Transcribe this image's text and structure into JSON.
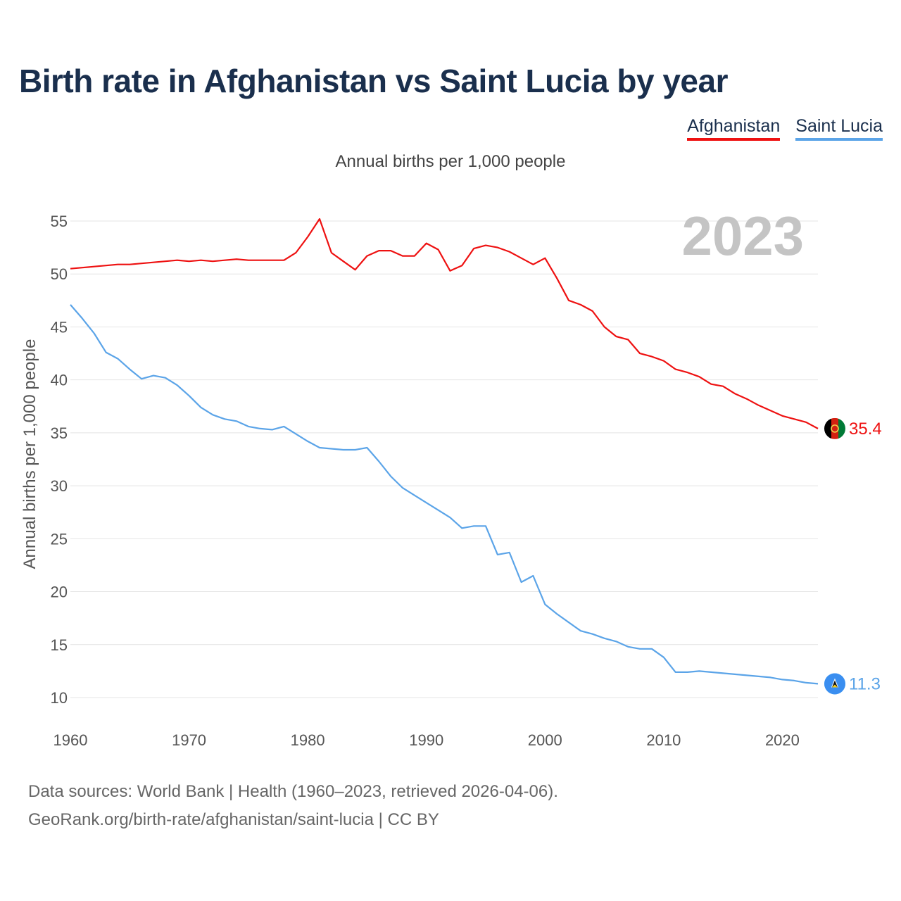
{
  "header": {
    "title": "Birth rate in Afghanistan vs Saint Lucia by year"
  },
  "legend": [
    {
      "name": "Afghanistan",
      "color": "#ee1111"
    },
    {
      "name": "Saint Lucia",
      "color": "#5ba4e8"
    }
  ],
  "footer": {
    "line1": "Data sources: World Bank | Health (1960–2023, retrieved 2026-04-06).",
    "line2": "GeoRank.org/birth-rate/afghanistan/saint-lucia | CC BY"
  },
  "chart_data": {
    "type": "line",
    "title": "Birth rate in Afghanistan vs Saint Lucia by year",
    "subtitle": "Annual births per 1,000 people",
    "xlabel": "",
    "ylabel": "Annual births per 1,000 people",
    "year_label": "2023",
    "xlim": [
      1960,
      2023
    ],
    "ylim": [
      8,
      57
    ],
    "x_ticks": [
      1960,
      1970,
      1980,
      1990,
      2000,
      2010,
      2020
    ],
    "y_ticks": [
      10,
      15,
      20,
      25,
      30,
      35,
      40,
      45,
      50,
      55
    ],
    "grid": true,
    "x": [
      1960,
      1961,
      1962,
      1963,
      1964,
      1965,
      1966,
      1967,
      1968,
      1969,
      1970,
      1971,
      1972,
      1973,
      1974,
      1975,
      1976,
      1977,
      1978,
      1979,
      1980,
      1981,
      1982,
      1983,
      1984,
      1985,
      1986,
      1987,
      1988,
      1989,
      1990,
      1991,
      1992,
      1993,
      1994,
      1995,
      1996,
      1997,
      1998,
      1999,
      2000,
      2001,
      2002,
      2003,
      2004,
      2005,
      2006,
      2007,
      2008,
      2009,
      2010,
      2011,
      2012,
      2013,
      2014,
      2015,
      2016,
      2017,
      2018,
      2019,
      2020,
      2021,
      2022,
      2023
    ],
    "series": [
      {
        "name": "Afghanistan",
        "color": "#ee1111",
        "end_label": "35.4",
        "values": [
          50.5,
          50.6,
          50.7,
          50.8,
          50.9,
          50.9,
          51.0,
          51.1,
          51.2,
          51.3,
          51.2,
          51.3,
          51.2,
          51.3,
          51.4,
          51.3,
          51.3,
          51.3,
          51.3,
          52.0,
          53.5,
          55.2,
          52.0,
          51.2,
          50.4,
          51.7,
          52.2,
          52.2,
          51.7,
          51.7,
          52.9,
          52.3,
          50.3,
          50.8,
          52.4,
          52.7,
          52.5,
          52.1,
          51.5,
          50.9,
          51.5,
          49.6,
          47.5,
          47.1,
          46.5,
          45.0,
          44.1,
          43.8,
          42.5,
          42.2,
          41.8,
          41.0,
          40.7,
          40.3,
          39.6,
          39.4,
          38.7,
          38.2,
          37.6,
          37.1,
          36.6,
          36.3,
          36.0,
          35.4
        ]
      },
      {
        "name": "Saint Lucia",
        "color": "#5ba4e8",
        "end_label": "11.3",
        "values": [
          47.1,
          45.8,
          44.4,
          42.6,
          42.0,
          41.0,
          40.1,
          40.4,
          40.2,
          39.5,
          38.5,
          37.4,
          36.7,
          36.3,
          36.1,
          35.6,
          35.4,
          35.3,
          35.6,
          34.9,
          34.2,
          33.6,
          33.5,
          33.4,
          33.4,
          33.6,
          32.3,
          30.9,
          29.8,
          29.1,
          28.4,
          27.7,
          27.0,
          26.0,
          26.2,
          26.2,
          23.5,
          23.7,
          20.9,
          21.5,
          18.8,
          17.9,
          17.1,
          16.3,
          16.0,
          15.6,
          15.3,
          14.8,
          14.6,
          14.6,
          13.8,
          12.4,
          12.4,
          12.5,
          12.4,
          12.3,
          12.2,
          12.1,
          12.0,
          11.9,
          11.7,
          11.6,
          11.4,
          11.3
        ]
      }
    ]
  }
}
